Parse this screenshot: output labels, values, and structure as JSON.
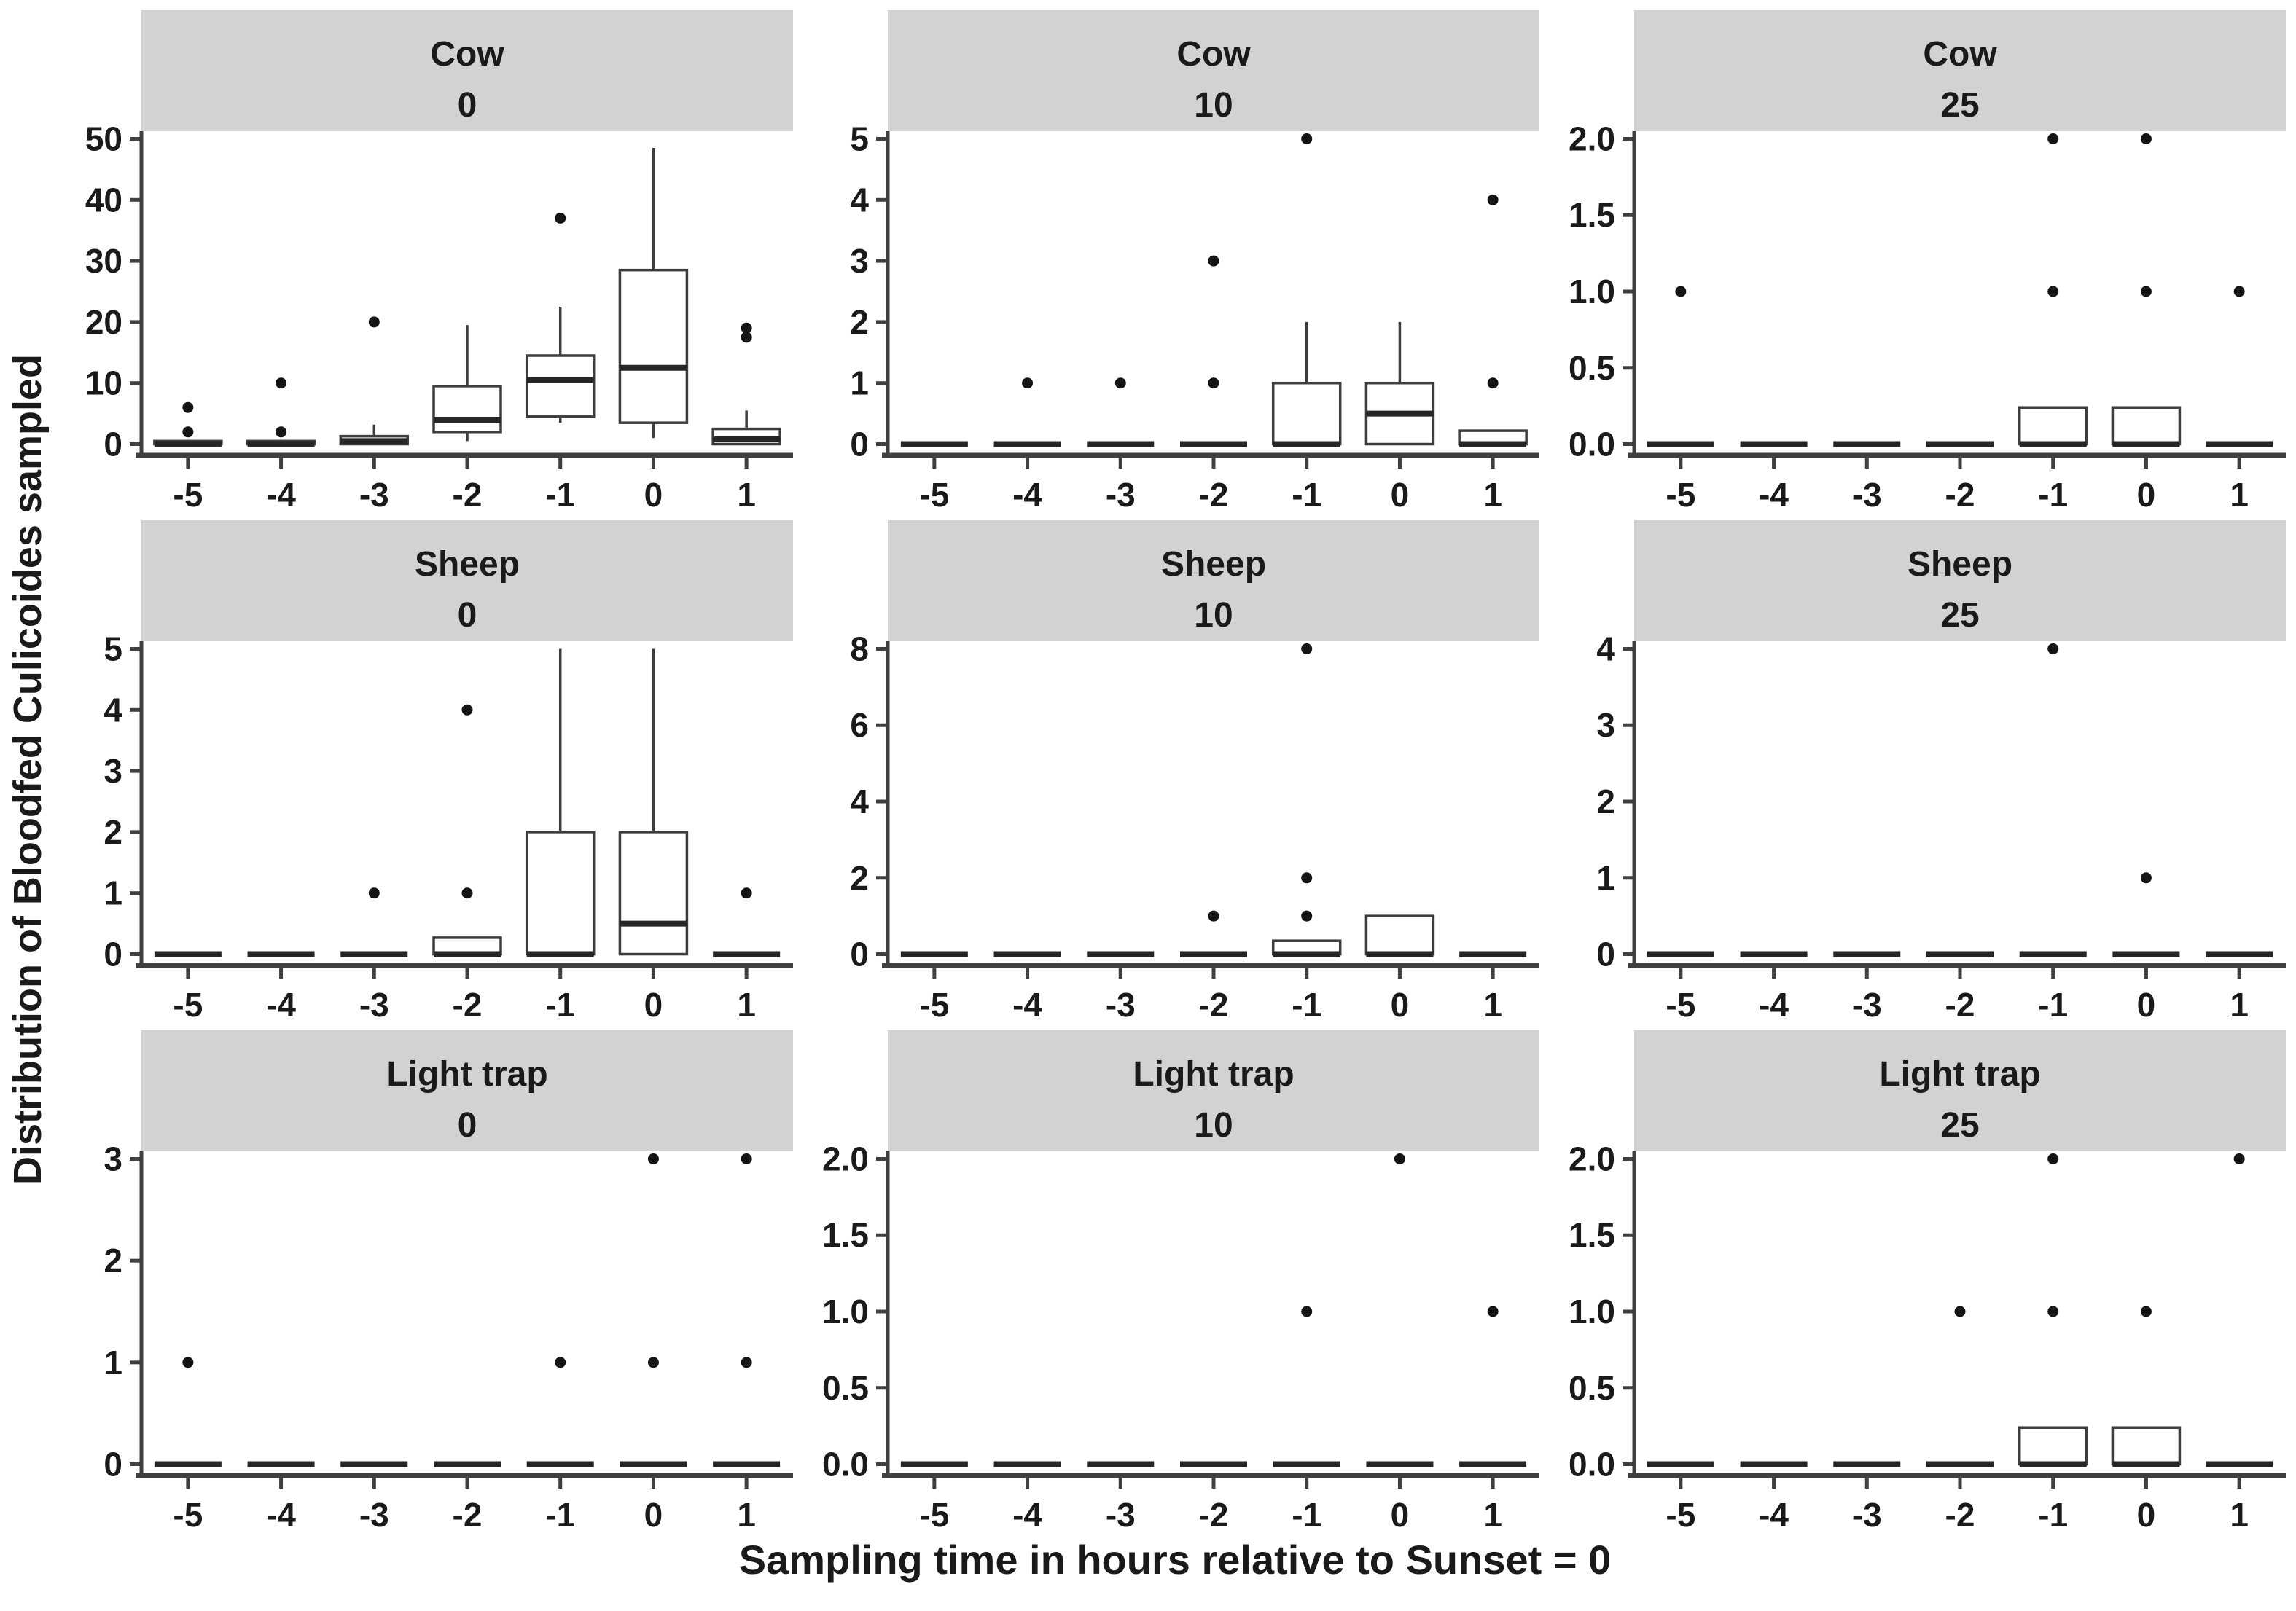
{
  "figure": {
    "xlabel": "Sampling time in hours relative to Sunset = 0",
    "ylabel": "Distribution of Bloodfed Culicoides sampled"
  },
  "style": {
    "strip_fill": "#d2d2d2",
    "axis_color": "#3f3f3f",
    "box_stroke": "#3d3d3d",
    "median_color": "#262626",
    "outlier_color": "#141414",
    "text_color": "#1a1a1a",
    "box_fill": "#ffffff"
  },
  "chart_data": {
    "type": "boxplot",
    "layout": "facet-grid-3x3",
    "grid": false,
    "x_label": "Sampling time in hours relative to Sunset = 0",
    "y_label": "Distribution of Bloodfed Culicoides sampled",
    "facet_rows": [
      "Cow",
      "Sheep",
      "Light trap"
    ],
    "facet_cols": [
      "0",
      "10",
      "25"
    ],
    "x_categories": [
      "-5",
      "-4",
      "-3",
      "-2",
      "-1",
      "0",
      "1"
    ],
    "panels": [
      {
        "row": "Cow",
        "col": "0",
        "yticks": [
          0,
          10,
          20,
          30,
          40,
          50
        ],
        "ytick_labels": [
          "0",
          "10",
          "20",
          "30",
          "40",
          "50"
        ],
        "boxes": [
          {
            "x": "-5",
            "lo": 0,
            "q1": 0,
            "median": 0,
            "q3": 0.5,
            "hi": 0.5,
            "outliers": [
              2,
              6
            ]
          },
          {
            "x": "-4",
            "lo": 0,
            "q1": 0,
            "median": 0,
            "q3": 0.5,
            "hi": 0.5,
            "outliers": [
              2,
              10
            ]
          },
          {
            "x": "-3",
            "lo": 0,
            "q1": 0,
            "median": 0.5,
            "q3": 1.3,
            "hi": 3.2,
            "outliers": [
              20
            ]
          },
          {
            "x": "-2",
            "lo": 0.5,
            "q1": 2,
            "median": 4,
            "q3": 9.5,
            "hi": 19.5,
            "outliers": []
          },
          {
            "x": "-1",
            "lo": 3.5,
            "q1": 4.5,
            "median": 10.5,
            "q3": 14.5,
            "hi": 22.5,
            "outliers": [
              37
            ]
          },
          {
            "x": "0",
            "lo": 1,
            "q1": 3.5,
            "median": 12.5,
            "q3": 28.5,
            "hi": 48.5,
            "outliers": []
          },
          {
            "x": "1",
            "lo": 0,
            "q1": 0,
            "median": 0.8,
            "q3": 2.5,
            "hi": 5.5,
            "outliers": [
              17.5,
              19
            ]
          }
        ]
      },
      {
        "row": "Cow",
        "col": "10",
        "yticks": [
          0,
          1,
          2,
          3,
          4,
          5
        ],
        "ytick_labels": [
          "0",
          "1",
          "2",
          "3",
          "4",
          "5"
        ],
        "boxes": [
          {
            "x": "-5",
            "lo": 0,
            "q1": 0,
            "median": 0,
            "q3": 0,
            "hi": 0,
            "outliers": []
          },
          {
            "x": "-4",
            "lo": 0,
            "q1": 0,
            "median": 0,
            "q3": 0,
            "hi": 0,
            "outliers": [
              1
            ]
          },
          {
            "x": "-3",
            "lo": 0,
            "q1": 0,
            "median": 0,
            "q3": 0,
            "hi": 0,
            "outliers": [
              1
            ]
          },
          {
            "x": "-2",
            "lo": 0,
            "q1": 0,
            "median": 0,
            "q3": 0,
            "hi": 0,
            "outliers": [
              1,
              3
            ]
          },
          {
            "x": "-1",
            "lo": 0,
            "q1": 0,
            "median": 0,
            "q3": 1,
            "hi": 2,
            "outliers": [
              5
            ]
          },
          {
            "x": "0",
            "lo": 0,
            "q1": 0,
            "median": 0.5,
            "q3": 1,
            "hi": 2,
            "outliers": []
          },
          {
            "x": "1",
            "lo": 0,
            "q1": 0,
            "median": 0,
            "q3": 0.22,
            "hi": 0.22,
            "outliers": [
              1,
              4
            ]
          }
        ]
      },
      {
        "row": "Cow",
        "col": "25",
        "yticks": [
          0,
          0.5,
          1,
          1.5,
          2
        ],
        "ytick_labels": [
          "0.0",
          "0.5",
          "1.0",
          "1.5",
          "2.0"
        ],
        "boxes": [
          {
            "x": "-5",
            "lo": 0,
            "q1": 0,
            "median": 0,
            "q3": 0,
            "hi": 0,
            "outliers": [
              1
            ]
          },
          {
            "x": "-4",
            "lo": 0,
            "q1": 0,
            "median": 0,
            "q3": 0,
            "hi": 0,
            "outliers": []
          },
          {
            "x": "-3",
            "lo": 0,
            "q1": 0,
            "median": 0,
            "q3": 0,
            "hi": 0,
            "outliers": []
          },
          {
            "x": "-2",
            "lo": 0,
            "q1": 0,
            "median": 0,
            "q3": 0,
            "hi": 0,
            "outliers": []
          },
          {
            "x": "-1",
            "lo": 0,
            "q1": 0,
            "median": 0,
            "q3": 0.24,
            "hi": 0.24,
            "outliers": [
              1,
              2
            ]
          },
          {
            "x": "0",
            "lo": 0,
            "q1": 0,
            "median": 0,
            "q3": 0.24,
            "hi": 0.24,
            "outliers": [
              1,
              2
            ]
          },
          {
            "x": "1",
            "lo": 0,
            "q1": 0,
            "median": 0,
            "q3": 0,
            "hi": 0,
            "outliers": [
              1
            ]
          }
        ]
      },
      {
        "row": "Sheep",
        "col": "0",
        "yticks": [
          0,
          1,
          2,
          3,
          4,
          5
        ],
        "ytick_labels": [
          "0",
          "1",
          "2",
          "3",
          "4",
          "5"
        ],
        "boxes": [
          {
            "x": "-5",
            "lo": 0,
            "q1": 0,
            "median": 0,
            "q3": 0,
            "hi": 0,
            "outliers": []
          },
          {
            "x": "-4",
            "lo": 0,
            "q1": 0,
            "median": 0,
            "q3": 0,
            "hi": 0,
            "outliers": []
          },
          {
            "x": "-3",
            "lo": 0,
            "q1": 0,
            "median": 0,
            "q3": 0,
            "hi": 0,
            "outliers": [
              1
            ]
          },
          {
            "x": "-2",
            "lo": 0,
            "q1": 0,
            "median": 0,
            "q3": 0.27,
            "hi": 0.27,
            "outliers": [
              1,
              4
            ]
          },
          {
            "x": "-1",
            "lo": 0,
            "q1": 0,
            "median": 0,
            "q3": 2,
            "hi": 5,
            "outliers": []
          },
          {
            "x": "0",
            "lo": 0,
            "q1": 0,
            "median": 0.5,
            "q3": 2,
            "hi": 5,
            "outliers": []
          },
          {
            "x": "1",
            "lo": 0,
            "q1": 0,
            "median": 0,
            "q3": 0,
            "hi": 0,
            "outliers": [
              1
            ]
          }
        ]
      },
      {
        "row": "Sheep",
        "col": "10",
        "yticks": [
          0,
          2,
          4,
          6,
          8
        ],
        "ytick_labels": [
          "0",
          "2",
          "4",
          "6",
          "8"
        ],
        "boxes": [
          {
            "x": "-5",
            "lo": 0,
            "q1": 0,
            "median": 0,
            "q3": 0,
            "hi": 0,
            "outliers": []
          },
          {
            "x": "-4",
            "lo": 0,
            "q1": 0,
            "median": 0,
            "q3": 0,
            "hi": 0,
            "outliers": []
          },
          {
            "x": "-3",
            "lo": 0,
            "q1": 0,
            "median": 0,
            "q3": 0,
            "hi": 0,
            "outliers": []
          },
          {
            "x": "-2",
            "lo": 0,
            "q1": 0,
            "median": 0,
            "q3": 0,
            "hi": 0,
            "outliers": [
              1
            ]
          },
          {
            "x": "-1",
            "lo": 0,
            "q1": 0,
            "median": 0,
            "q3": 0.35,
            "hi": 0.35,
            "outliers": [
              1,
              2,
              8
            ]
          },
          {
            "x": "0",
            "lo": 0,
            "q1": 0,
            "median": 0,
            "q3": 1,
            "hi": 1,
            "outliers": []
          },
          {
            "x": "1",
            "lo": 0,
            "q1": 0,
            "median": 0,
            "q3": 0,
            "hi": 0,
            "outliers": []
          }
        ]
      },
      {
        "row": "Sheep",
        "col": "25",
        "yticks": [
          0,
          1,
          2,
          3,
          4
        ],
        "ytick_labels": [
          "0",
          "1",
          "2",
          "3",
          "4"
        ],
        "boxes": [
          {
            "x": "-5",
            "lo": 0,
            "q1": 0,
            "median": 0,
            "q3": 0,
            "hi": 0,
            "outliers": []
          },
          {
            "x": "-4",
            "lo": 0,
            "q1": 0,
            "median": 0,
            "q3": 0,
            "hi": 0,
            "outliers": []
          },
          {
            "x": "-3",
            "lo": 0,
            "q1": 0,
            "median": 0,
            "q3": 0,
            "hi": 0,
            "outliers": []
          },
          {
            "x": "-2",
            "lo": 0,
            "q1": 0,
            "median": 0,
            "q3": 0,
            "hi": 0,
            "outliers": []
          },
          {
            "x": "-1",
            "lo": 0,
            "q1": 0,
            "median": 0,
            "q3": 0,
            "hi": 0,
            "outliers": [
              4
            ]
          },
          {
            "x": "0",
            "lo": 0,
            "q1": 0,
            "median": 0,
            "q3": 0,
            "hi": 0,
            "outliers": [
              1
            ]
          },
          {
            "x": "1",
            "lo": 0,
            "q1": 0,
            "median": 0,
            "q3": 0,
            "hi": 0,
            "outliers": []
          }
        ]
      },
      {
        "row": "Light trap",
        "col": "0",
        "yticks": [
          0,
          1,
          2,
          3
        ],
        "ytick_labels": [
          "0",
          "1",
          "2",
          "3"
        ],
        "boxes": [
          {
            "x": "-5",
            "lo": 0,
            "q1": 0,
            "median": 0,
            "q3": 0,
            "hi": 0,
            "outliers": [
              1
            ]
          },
          {
            "x": "-4",
            "lo": 0,
            "q1": 0,
            "median": 0,
            "q3": 0,
            "hi": 0,
            "outliers": []
          },
          {
            "x": "-3",
            "lo": 0,
            "q1": 0,
            "median": 0,
            "q3": 0,
            "hi": 0,
            "outliers": []
          },
          {
            "x": "-2",
            "lo": 0,
            "q1": 0,
            "median": 0,
            "q3": 0,
            "hi": 0,
            "outliers": []
          },
          {
            "x": "-1",
            "lo": 0,
            "q1": 0,
            "median": 0,
            "q3": 0,
            "hi": 0,
            "outliers": [
              1
            ]
          },
          {
            "x": "0",
            "lo": 0,
            "q1": 0,
            "median": 0,
            "q3": 0,
            "hi": 0,
            "outliers": [
              1,
              3
            ]
          },
          {
            "x": "1",
            "lo": 0,
            "q1": 0,
            "median": 0,
            "q3": 0,
            "hi": 0,
            "outliers": [
              1,
              3
            ]
          }
        ]
      },
      {
        "row": "Light trap",
        "col": "10",
        "yticks": [
          0,
          0.5,
          1,
          1.5,
          2
        ],
        "ytick_labels": [
          "0.0",
          "0.5",
          "1.0",
          "1.5",
          "2.0"
        ],
        "boxes": [
          {
            "x": "-5",
            "lo": 0,
            "q1": 0,
            "median": 0,
            "q3": 0,
            "hi": 0,
            "outliers": []
          },
          {
            "x": "-4",
            "lo": 0,
            "q1": 0,
            "median": 0,
            "q3": 0,
            "hi": 0,
            "outliers": []
          },
          {
            "x": "-3",
            "lo": 0,
            "q1": 0,
            "median": 0,
            "q3": 0,
            "hi": 0,
            "outliers": []
          },
          {
            "x": "-2",
            "lo": 0,
            "q1": 0,
            "median": 0,
            "q3": 0,
            "hi": 0,
            "outliers": []
          },
          {
            "x": "-1",
            "lo": 0,
            "q1": 0,
            "median": 0,
            "q3": 0,
            "hi": 0,
            "outliers": [
              1
            ]
          },
          {
            "x": "0",
            "lo": 0,
            "q1": 0,
            "median": 0,
            "q3": 0,
            "hi": 0,
            "outliers": [
              2
            ]
          },
          {
            "x": "1",
            "lo": 0,
            "q1": 0,
            "median": 0,
            "q3": 0,
            "hi": 0,
            "outliers": [
              1
            ]
          }
        ]
      },
      {
        "row": "Light trap",
        "col": "25",
        "yticks": [
          0,
          0.5,
          1,
          1.5,
          2
        ],
        "ytick_labels": [
          "0.0",
          "0.5",
          "1.0",
          "1.5",
          "2.0"
        ],
        "boxes": [
          {
            "x": "-5",
            "lo": 0,
            "q1": 0,
            "median": 0,
            "q3": 0,
            "hi": 0,
            "outliers": []
          },
          {
            "x": "-4",
            "lo": 0,
            "q1": 0,
            "median": 0,
            "q3": 0,
            "hi": 0,
            "outliers": []
          },
          {
            "x": "-3",
            "lo": 0,
            "q1": 0,
            "median": 0,
            "q3": 0,
            "hi": 0,
            "outliers": []
          },
          {
            "x": "-2",
            "lo": 0,
            "q1": 0,
            "median": 0,
            "q3": 0,
            "hi": 0,
            "outliers": [
              1
            ]
          },
          {
            "x": "-1",
            "lo": 0,
            "q1": 0,
            "median": 0,
            "q3": 0.24,
            "hi": 0.24,
            "outliers": [
              1,
              2
            ]
          },
          {
            "x": "0",
            "lo": 0,
            "q1": 0,
            "median": 0,
            "q3": 0.24,
            "hi": 0.24,
            "outliers": [
              1
            ]
          },
          {
            "x": "1",
            "lo": 0,
            "q1": 0,
            "median": 0,
            "q3": 0,
            "hi": 0,
            "outliers": [
              2
            ]
          }
        ]
      }
    ]
  }
}
